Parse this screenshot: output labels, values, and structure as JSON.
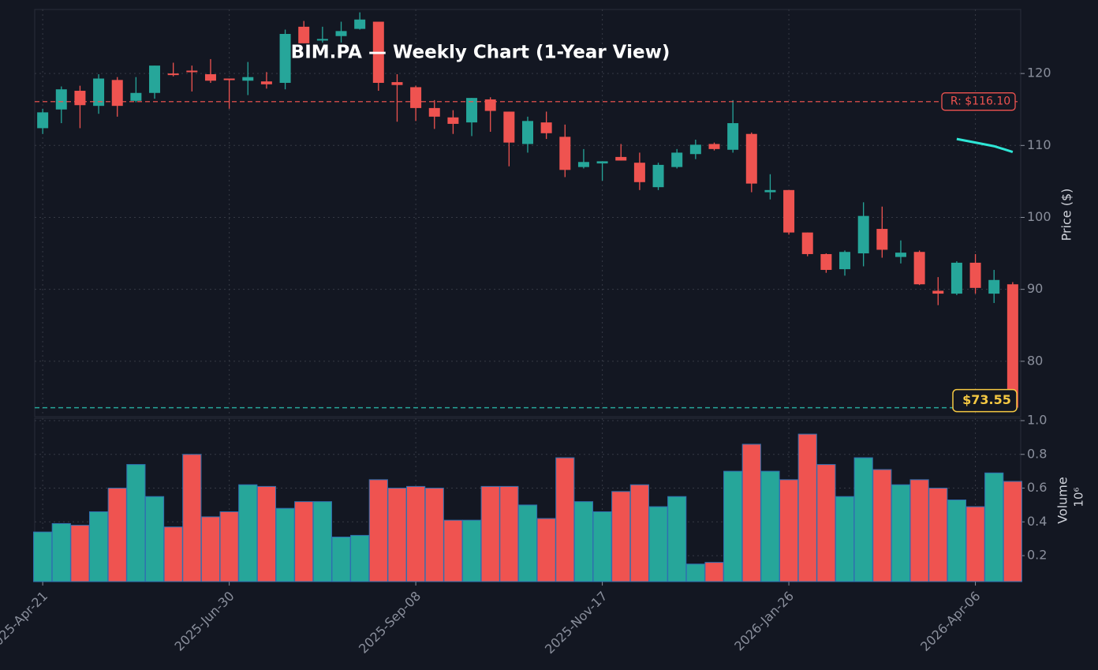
{
  "chart_data": {
    "type": "candlestick",
    "title": "BIM.PA — Weekly Chart (1-Year View)",
    "ylabel": "Price ($)",
    "y2label": "Volume",
    "y2label_offset": "10⁶",
    "up_color": "#26a69a",
    "down_color": "#ef5350",
    "grid": true,
    "x": [
      "2025-04-21",
      "2025-04-28",
      "2025-05-05",
      "2025-05-12",
      "2025-05-19",
      "2025-05-26",
      "2025-06-02",
      "2025-06-09",
      "2025-06-16",
      "2025-06-23",
      "2025-06-30",
      "2025-07-07",
      "2025-07-14",
      "2025-07-21",
      "2025-07-28",
      "2025-08-04",
      "2025-08-11",
      "2025-08-18",
      "2025-08-25",
      "2025-09-01",
      "2025-09-08",
      "2025-09-15",
      "2025-09-22",
      "2025-09-29",
      "2025-10-06",
      "2025-10-13",
      "2025-10-20",
      "2025-10-27",
      "2025-11-03",
      "2025-11-10",
      "2025-11-17",
      "2025-11-24",
      "2025-12-01",
      "2025-12-08",
      "2025-12-15",
      "2025-12-22",
      "2025-12-29",
      "2026-01-05",
      "2026-01-12",
      "2026-01-19",
      "2026-01-26",
      "2026-02-02",
      "2026-02-09",
      "2026-02-16",
      "2026-02-23",
      "2026-03-02",
      "2026-03-09",
      "2026-03-16",
      "2026-03-23",
      "2026-03-30",
      "2026-04-06",
      "2026-04-13",
      "2026-04-20"
    ],
    "open": [
      112.4,
      115.0,
      117.6,
      115.5,
      119.1,
      116.2,
      117.3,
      120.0,
      120.4,
      119.9,
      119.3,
      119.0,
      118.9,
      118.7,
      126.5,
      124.6,
      125.2,
      126.2,
      127.2,
      118.8,
      118.1,
      115.2,
      113.9,
      113.2,
      116.4,
      114.7,
      110.2,
      113.2,
      111.2,
      107.0,
      107.5,
      108.4,
      107.6,
      104.2,
      107.0,
      108.8,
      110.2,
      109.4,
      111.6,
      103.5,
      103.8,
      97.9,
      94.9,
      92.8,
      95.0,
      98.4,
      94.5,
      95.2,
      89.8,
      89.4,
      93.7,
      89.4,
      90.7
    ],
    "high": [
      115.1,
      118.2,
      118.3,
      119.9,
      119.5,
      119.5,
      121.1,
      121.5,
      121.1,
      122.0,
      119.3,
      121.6,
      120.2,
      126.1,
      127.3,
      126.5,
      127.2,
      128.5,
      127.2,
      119.9,
      118.3,
      116.3,
      114.9,
      116.6,
      116.7,
      114.7,
      114.0,
      114.7,
      112.9,
      109.5,
      107.8,
      110.2,
      109.0,
      107.6,
      109.5,
      110.8,
      110.4,
      116.3,
      111.8,
      106.0,
      103.8,
      97.9,
      95.0,
      95.4,
      102.1,
      101.5,
      96.8,
      95.4,
      91.7,
      93.9,
      94.9,
      92.7,
      91.0
    ],
    "low": [
      111.6,
      113.1,
      112.4,
      114.4,
      114.0,
      116.0,
      116.5,
      119.6,
      117.5,
      118.7,
      115.1,
      117.0,
      117.9,
      117.8,
      124.2,
      124.3,
      124.3,
      126.1,
      117.6,
      113.3,
      113.4,
      112.3,
      111.6,
      111.3,
      111.9,
      107.1,
      109.0,
      110.9,
      105.6,
      106.8,
      105.1,
      107.9,
      103.8,
      103.8,
      106.8,
      108.1,
      109.3,
      109.0,
      103.5,
      102.5,
      97.6,
      94.6,
      92.3,
      91.9,
      93.2,
      94.4,
      93.6,
      90.6,
      87.8,
      89.2,
      89.4,
      88.1,
      73.3
    ],
    "close": [
      114.6,
      117.8,
      115.6,
      119.3,
      115.5,
      117.3,
      121.1,
      119.8,
      120.3,
      119.0,
      119.1,
      119.5,
      118.5,
      125.5,
      124.2,
      124.8,
      125.9,
      127.5,
      118.7,
      118.4,
      115.2,
      114.0,
      113.0,
      116.6,
      114.8,
      110.4,
      113.4,
      111.7,
      106.6,
      107.7,
      107.8,
      107.9,
      104.9,
      107.3,
      109.0,
      110.1,
      109.5,
      113.1,
      104.7,
      103.8,
      97.9,
      94.9,
      92.7,
      95.2,
      100.2,
      95.5,
      95.1,
      90.7,
      89.4,
      93.7,
      90.2,
      91.3,
      73.55
    ],
    "volume": [
      0.34,
      0.39,
      0.38,
      0.46,
      0.6,
      0.74,
      0.55,
      0.37,
      0.8,
      0.43,
      0.46,
      0.62,
      0.61,
      0.48,
      0.52,
      0.52,
      0.31,
      0.32,
      0.65,
      0.6,
      0.61,
      0.6,
      0.41,
      0.41,
      0.61,
      0.61,
      0.5,
      0.42,
      0.78,
      0.52,
      0.46,
      0.58,
      0.62,
      0.49,
      0.55,
      0.15,
      0.16,
      0.7,
      0.86,
      0.7,
      0.65,
      0.92,
      0.74,
      0.55,
      0.78,
      0.71,
      0.62,
      0.65,
      0.6,
      0.53,
      0.49,
      0.69,
      0.64
    ],
    "overlay": {
      "color": "#2ee6d6",
      "x": [
        "2026-03-30",
        "2026-04-06",
        "2026-04-13",
        "2026-04-20"
      ],
      "values": [
        110.9,
        110.4,
        109.9,
        109.1
      ]
    },
    "resistance": {
      "value": 116.1,
      "label": "R: $116.10",
      "color": "#ef5350"
    },
    "last_price": {
      "value": 73.55,
      "label": "$73.55",
      "color": "#26a69a",
      "label_color": "#f5c842"
    },
    "xlim": [
      "2025-04-18",
      "2026-04-23"
    ],
    "xticks": [
      {
        "value": "2025-04-21",
        "label": "2025-Apr-21"
      },
      {
        "value": "2025-06-30",
        "label": "2025-Jun-30"
      },
      {
        "value": "2025-09-08",
        "label": "2025-Sep-08"
      },
      {
        "value": "2025-11-17",
        "label": "2025-Nov-17"
      },
      {
        "value": "2026-01-26",
        "label": "2026-Jan-26"
      },
      {
        "value": "2026-04-06",
        "label": "2026-Apr-06"
      }
    ],
    "ylim": [
      72.3,
      128.9
    ],
    "yticks": [
      80,
      90,
      100,
      110,
      120
    ],
    "y2lim": [
      0.046,
      1.014
    ],
    "y2ticks": [
      0.2,
      0.4,
      0.6,
      0.8,
      {
        "value": 1,
        "label": "1.0"
      }
    ]
  }
}
